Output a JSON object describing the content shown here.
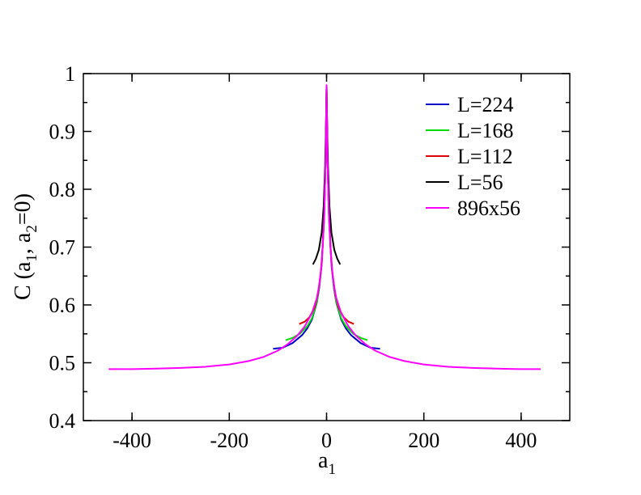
{
  "chart_data": {
    "type": "line",
    "xlabel": "a",
    "xlabel_sub": "1",
    "ylabel_parts": [
      "C (a",
      "1",
      ", a",
      "2",
      "=0)"
    ],
    "xlim": [
      -500,
      500
    ],
    "ylim": [
      0.4,
      1.0
    ],
    "x_ticks": [
      -400,
      -200,
      0,
      200,
      400
    ],
    "x_tick_labels": [
      "-400",
      "-200",
      "0",
      "200",
      "400"
    ],
    "y_ticks": [
      0.4,
      0.5,
      0.6,
      0.7,
      0.8,
      0.9,
      1.0
    ],
    "y_tick_labels": [
      "0.4",
      "0.5",
      "0.6",
      "0.7",
      "0.8",
      "0.9",
      "1"
    ],
    "grid": false,
    "legend_position": "top-right",
    "series": [
      {
        "name": "L=224",
        "color": "#0000cc",
        "x": [
          -110,
          -90,
          -70,
          -50,
          -40,
          -30,
          -20,
          -15,
          -10,
          -5,
          -2,
          0,
          2,
          5,
          10,
          15,
          20,
          30,
          40,
          50,
          70,
          90,
          110
        ],
        "y": [
          0.524,
          0.526,
          0.534,
          0.548,
          0.559,
          0.575,
          0.604,
          0.63,
          0.67,
          0.75,
          0.85,
          0.975,
          0.85,
          0.75,
          0.67,
          0.63,
          0.604,
          0.575,
          0.559,
          0.548,
          0.534,
          0.526,
          0.524
        ]
      },
      {
        "name": "L=168",
        "color": "#00dd00",
        "x": [
          -84,
          -70,
          -55,
          -40,
          -30,
          -20,
          -15,
          -10,
          -5,
          -2,
          0,
          2,
          5,
          10,
          15,
          20,
          30,
          40,
          55,
          70,
          84
        ],
        "y": [
          0.539,
          0.543,
          0.55,
          0.563,
          0.577,
          0.605,
          0.632,
          0.672,
          0.752,
          0.852,
          0.976,
          0.852,
          0.752,
          0.672,
          0.632,
          0.605,
          0.577,
          0.563,
          0.55,
          0.543,
          0.539
        ]
      },
      {
        "name": "L=112",
        "color": "#dd0000",
        "x": [
          -56,
          -45,
          -35,
          -25,
          -18,
          -12,
          -8,
          -4,
          -2,
          0,
          2,
          4,
          8,
          12,
          18,
          25,
          35,
          45,
          56
        ],
        "y": [
          0.567,
          0.571,
          0.579,
          0.595,
          0.618,
          0.655,
          0.7,
          0.78,
          0.86,
          0.977,
          0.86,
          0.78,
          0.7,
          0.655,
          0.618,
          0.595,
          0.579,
          0.571,
          0.567
        ]
      },
      {
        "name": "L=56",
        "color": "#000000",
        "x": [
          -28,
          -22,
          -16,
          -10,
          -6,
          -3,
          -1,
          0,
          1,
          3,
          6,
          10,
          16,
          22,
          28
        ],
        "y": [
          0.67,
          0.68,
          0.695,
          0.725,
          0.77,
          0.84,
          0.92,
          0.978,
          0.92,
          0.84,
          0.77,
          0.725,
          0.695,
          0.68,
          0.67
        ]
      },
      {
        "name": "896x56",
        "color": "#ff00ff",
        "x": [
          -448,
          -400,
          -350,
          -300,
          -250,
          -200,
          -160,
          -130,
          -100,
          -80,
          -60,
          -45,
          -30,
          -20,
          -15,
          -10,
          -5,
          -2,
          0,
          2,
          5,
          10,
          15,
          20,
          30,
          45,
          60,
          80,
          100,
          130,
          160,
          200,
          250,
          300,
          350,
          400,
          440
        ],
        "y": [
          0.489,
          0.489,
          0.49,
          0.491,
          0.493,
          0.497,
          0.503,
          0.51,
          0.521,
          0.532,
          0.547,
          0.563,
          0.586,
          0.612,
          0.635,
          0.672,
          0.75,
          0.85,
          0.98,
          0.85,
          0.75,
          0.672,
          0.635,
          0.612,
          0.586,
          0.563,
          0.547,
          0.532,
          0.521,
          0.51,
          0.503,
          0.497,
          0.493,
          0.491,
          0.49,
          0.489,
          0.489
        ]
      }
    ]
  }
}
